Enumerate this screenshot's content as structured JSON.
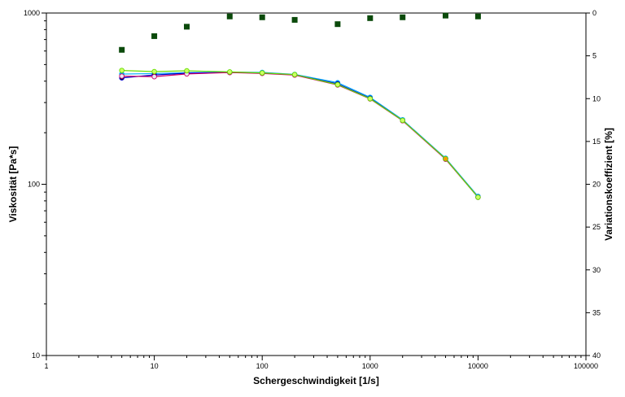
{
  "chart_data": {
    "type": "scatter",
    "title": "",
    "xlabel": "Schergeschwindigkeit  [1/s]",
    "ylabel": "Viskosität  [Pa*s]",
    "y2label": "Variationskoeffizient [%]",
    "xscale": "log",
    "yscale": "log",
    "xlim": [
      1,
      100000
    ],
    "ylim": [
      10,
      1000
    ],
    "y2lim": [
      40,
      0
    ],
    "x_ticks": [
      "1",
      "10",
      "100",
      "1000",
      "10000",
      "100000"
    ],
    "y_ticks": [
      "10",
      "100",
      "1000"
    ],
    "y2_ticks": [
      "0",
      "5",
      "10",
      "15",
      "20",
      "25",
      "30",
      "35",
      "40"
    ],
    "grid": false,
    "legend": "none",
    "x": [
      5,
      10,
      20,
      50,
      100,
      200,
      500,
      1000,
      2000,
      5000,
      10000
    ],
    "series": [
      {
        "axis": "left",
        "color": "#00aaff",
        "marker_fill": "#00aaff",
        "values": [
          440,
          443,
          448,
          452,
          450,
          438,
          392,
          322,
          238,
          142,
          85
        ]
      },
      {
        "axis": "left",
        "color": "#0000cc",
        "marker_fill": "#10104a",
        "values": [
          418,
          435,
          445,
          450,
          446,
          436,
          386,
          318,
          236,
          141,
          84
        ]
      },
      {
        "axis": "left",
        "color": "#cc0066",
        "marker_fill": "#e8e8f8",
        "values": [
          428,
          425,
          441,
          449,
          444,
          434,
          380,
          315,
          235,
          140,
          84
        ]
      },
      {
        "axis": "left",
        "color": "#66dd00",
        "marker_fill": "#ccff66",
        "values": [
          462,
          455,
          460,
          453,
          447,
          437,
          382,
          316,
          236,
          141,
          84
        ]
      },
      {
        "axis": "right",
        "color": "#0b4a0b",
        "marker": "square",
        "values": [
          4.3,
          2.7,
          1.6,
          0.4,
          0.5,
          0.8,
          1.3,
          0.6,
          0.5,
          0.3,
          0.4
        ]
      }
    ]
  }
}
